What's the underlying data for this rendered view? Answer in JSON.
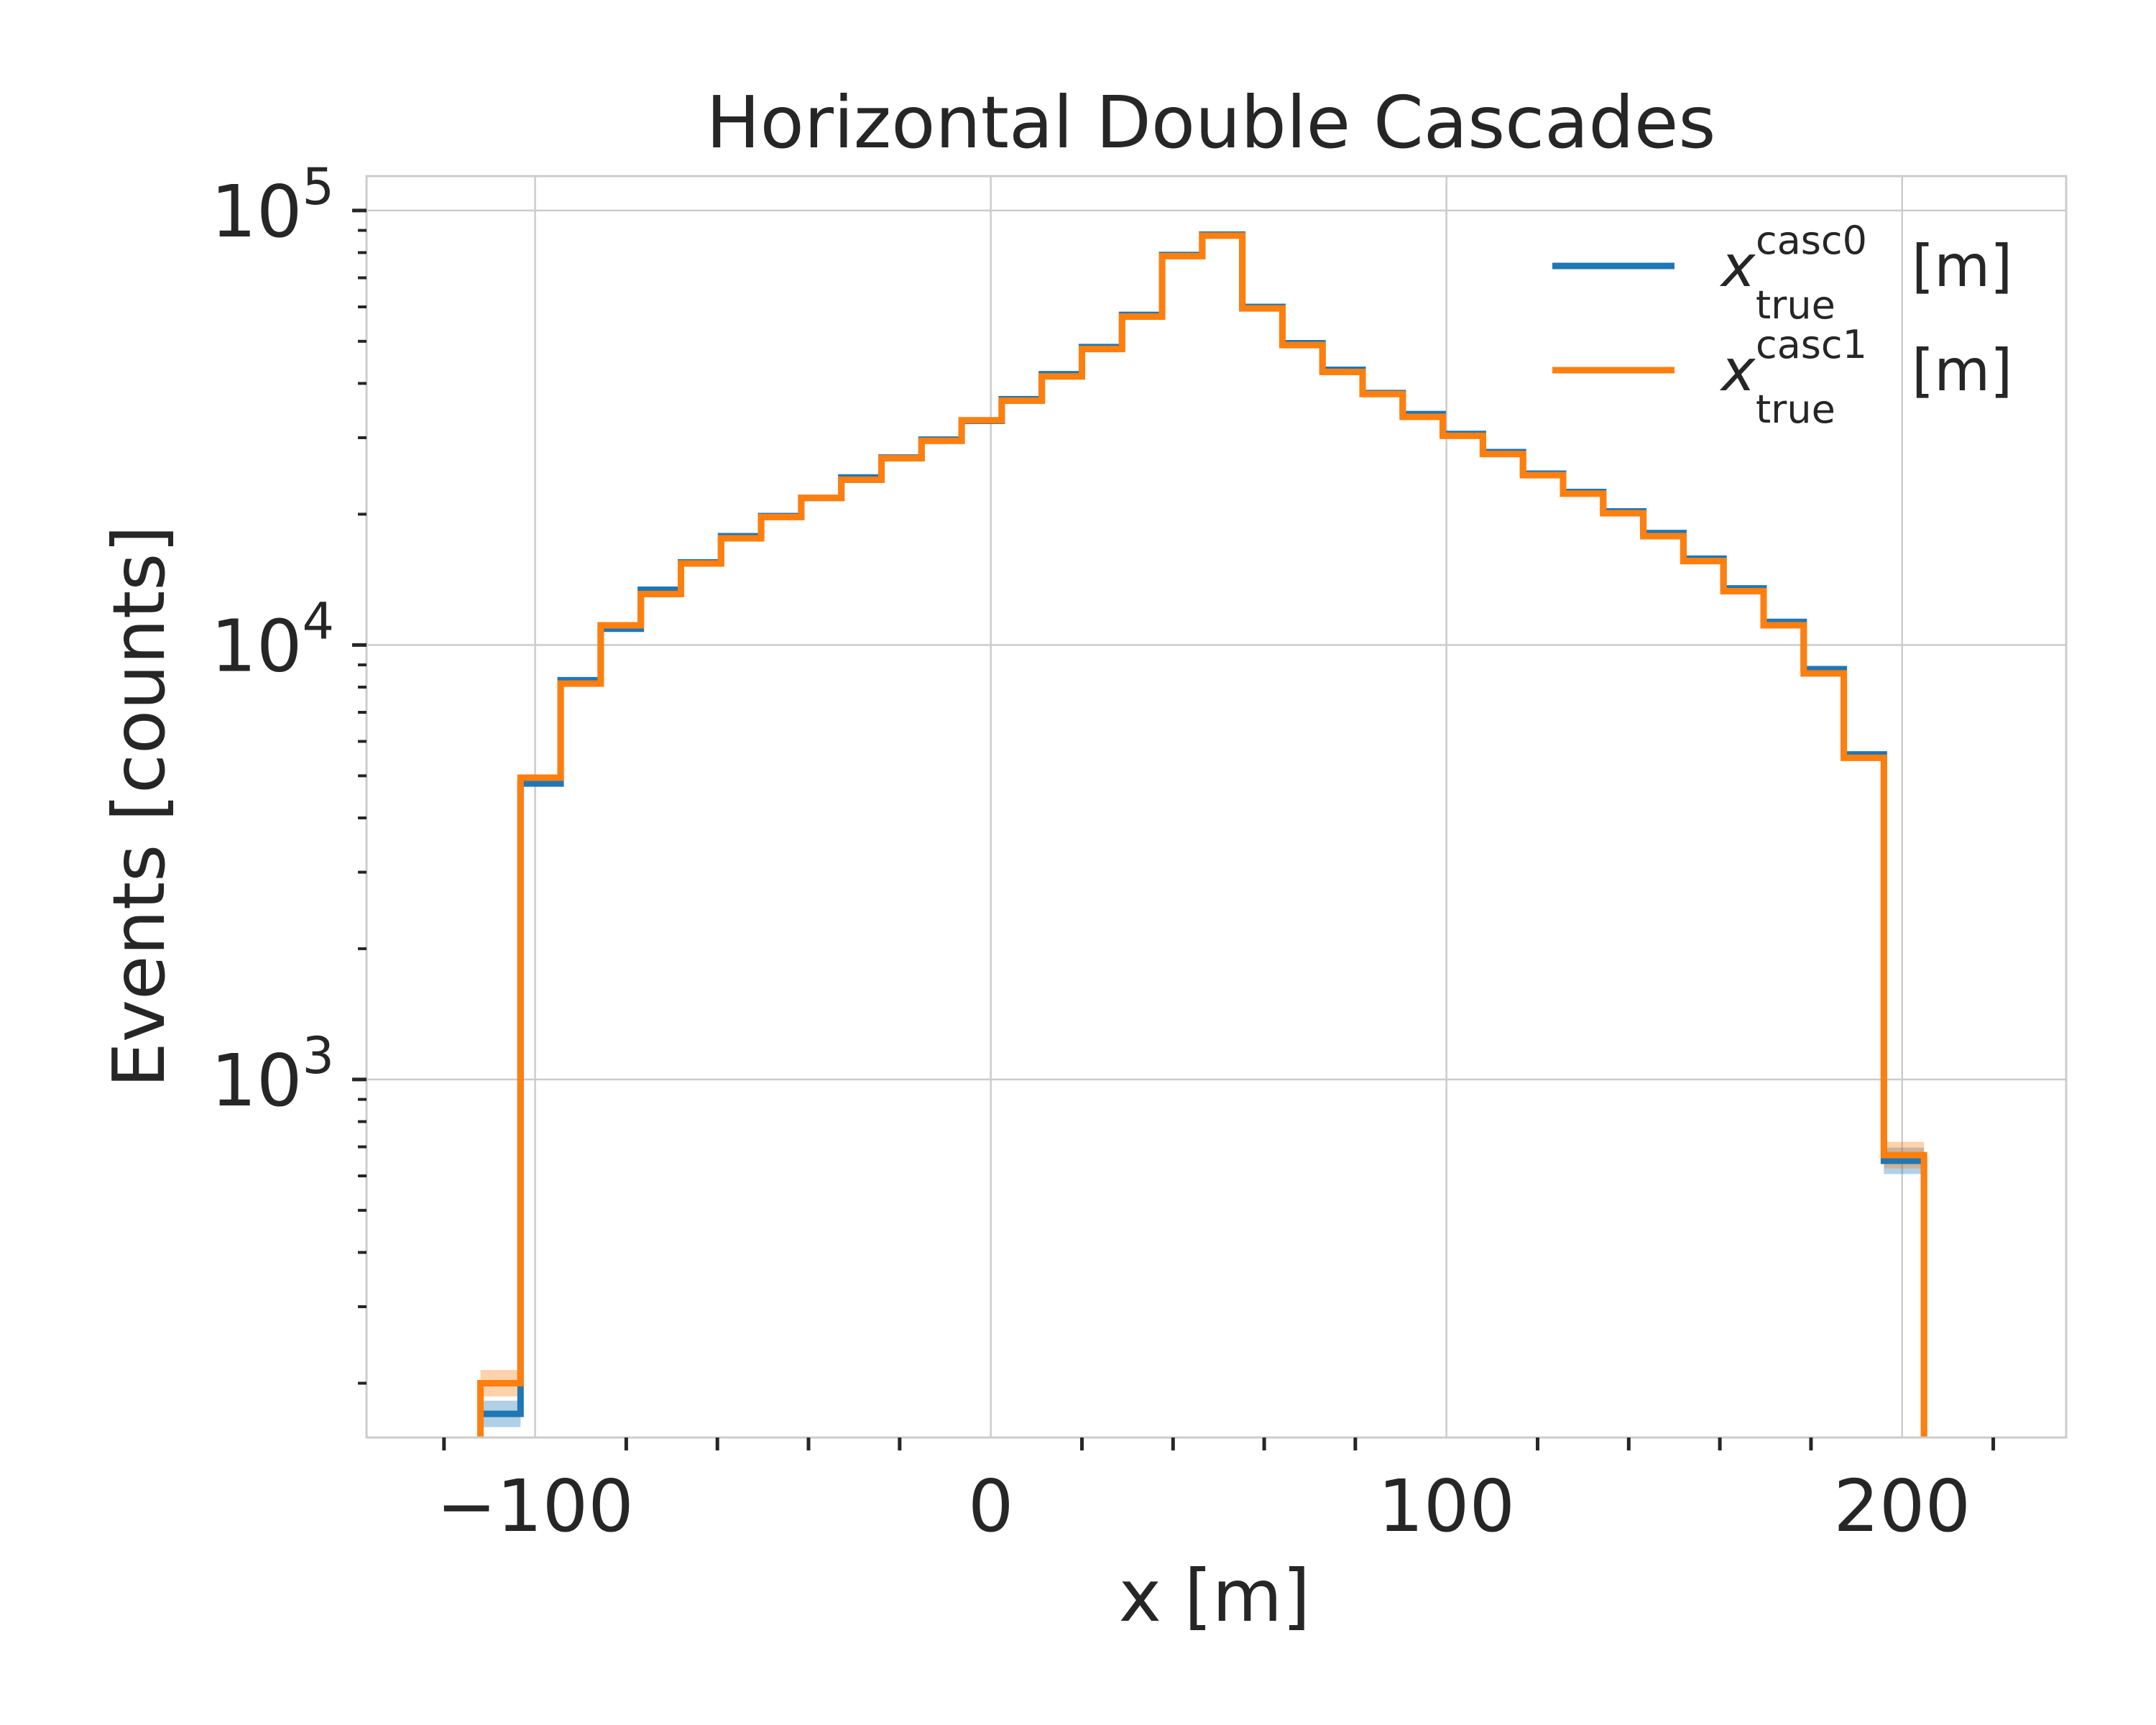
{
  "chart_data": {
    "type": "line",
    "title": "Horizontal Double Cascades",
    "xlabel": "x [m]",
    "ylabel": "Events [counts]",
    "xlim": [
      -137,
      236
    ],
    "ylim": [
      150,
      120000
    ],
    "yscale": "log",
    "x_ticks": [
      {
        "value": -100,
        "label": "−100"
      },
      {
        "value": 0,
        "label": "0"
      },
      {
        "value": 100,
        "label": "100"
      },
      {
        "value": 200,
        "label": "200"
      }
    ],
    "y_ticks": [
      {
        "value": 1000,
        "base": "10",
        "exp": "3"
      },
      {
        "value": 10000,
        "base": "10",
        "exp": "4"
      },
      {
        "value": 100000,
        "base": "10",
        "exp": "5"
      }
    ],
    "grid": true,
    "legend_position": "top-right",
    "bin_edges": [
      -112,
      -103.2,
      -94.4,
      -85.6,
      -76.8,
      -68,
      -59.2,
      -50.4,
      -41.6,
      -32.8,
      -24,
      -15.2,
      -6.4,
      2.4,
      11.2,
      20,
      28.8,
      37.6,
      46.4,
      55.2,
      64,
      72.8,
      81.6,
      90.4,
      99.2,
      108,
      116.8,
      125.6,
      134.4,
      143.2,
      152,
      160.8,
      169.6,
      178.4,
      187.2,
      196,
      204.8
    ],
    "series": [
      {
        "name": "x",
        "name_sup": "casc0",
        "name_sub": "true",
        "name_suffix": "[m]",
        "color": "#1f77b4",
        "values": [
          170,
          4800,
          8300,
          10900,
          13400,
          15500,
          17800,
          19800,
          21800,
          24300,
          27000,
          29700,
          32800,
          36800,
          42000,
          48500,
          57500,
          79000,
          88000,
          60000,
          49500,
          43000,
          38000,
          34000,
          30600,
          27800,
          24800,
          22500,
          20300,
          18100,
          15800,
          13500,
          11300,
          8800,
          5600,
          650
        ]
      },
      {
        "name": "x",
        "name_sup": "casc1",
        "name_sub": "true",
        "name_suffix": "[m]",
        "color": "#ff7f0e",
        "values": [
          200,
          4950,
          8150,
          11100,
          13100,
          15400,
          17600,
          19700,
          21800,
          24000,
          26900,
          29500,
          32900,
          36500,
          41500,
          48000,
          57000,
          78500,
          87500,
          59500,
          49000,
          42500,
          37800,
          33500,
          30300,
          27500,
          24600,
          22300,
          20100,
          17800,
          15600,
          13300,
          11100,
          8600,
          5500,
          670
        ]
      }
    ]
  }
}
